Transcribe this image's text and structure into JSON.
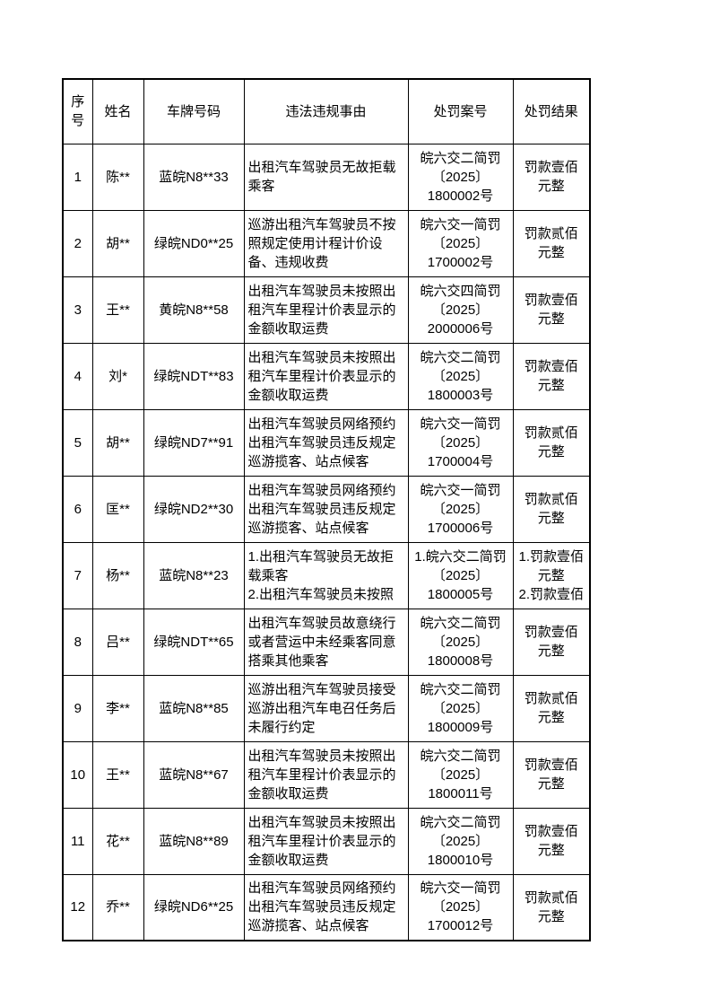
{
  "page": {
    "colors": {
      "background": "#ffffff",
      "table_border": "#000000",
      "text": "#000000"
    }
  },
  "table": {
    "columns": [
      {
        "key": "index",
        "label": "序号"
      },
      {
        "key": "name",
        "label": "姓名"
      },
      {
        "key": "plate",
        "label": "车牌号码"
      },
      {
        "key": "violation",
        "label": "违法违规事由"
      },
      {
        "key": "case_no",
        "label": "处罚案号"
      },
      {
        "key": "result",
        "label": "处罚结果"
      }
    ],
    "rows": [
      {
        "index": "1",
        "name": "陈**",
        "plate": "蓝皖N8**33",
        "violation": "出租汽车驾驶员无故拒载乘客",
        "case_no": "皖六交二简罚\n〔2025〕\n1800002号",
        "result": "罚款壹佰\n元整"
      },
      {
        "index": "2",
        "name": "胡**",
        "plate": "绿皖ND0**25",
        "violation": "巡游出租汽车驾驶员不按照规定使用计程计价设备、违规收费",
        "case_no": "皖六交一简罚\n〔2025〕\n1700002号",
        "result": "罚款贰佰\n元整"
      },
      {
        "index": "3",
        "name": "王**",
        "plate": "黄皖N8**58",
        "violation": "出租汽车驾驶员未按照出租汽车里程计价表显示的金额收取运费",
        "case_no": "皖六交四简罚\n〔2025〕\n2000006号",
        "result": "罚款壹佰\n元整"
      },
      {
        "index": "4",
        "name": "刘*",
        "plate": "绿皖NDT**83",
        "violation": "出租汽车驾驶员未按照出租汽车里程计价表显示的金额收取运费",
        "case_no": "皖六交二简罚\n〔2025〕\n1800003号",
        "result": "罚款壹佰\n元整"
      },
      {
        "index": "5",
        "name": "胡**",
        "plate": "绿皖ND7**91",
        "violation": "出租汽车驾驶员网络预约出租汽车驾驶员违反规定巡游揽客、站点候客",
        "case_no": "皖六交一简罚\n〔2025〕\n1700004号",
        "result": "罚款贰佰\n元整"
      },
      {
        "index": "6",
        "name": "匡**",
        "plate": "绿皖ND2**30",
        "violation": "出租汽车驾驶员网络预约出租汽车驾驶员违反规定巡游揽客、站点候客",
        "case_no": "皖六交一简罚\n〔2025〕\n1700006号",
        "result": "罚款贰佰\n元整"
      },
      {
        "index": "7",
        "name": "杨**",
        "plate": "蓝皖N8**23",
        "violation": "1.出租汽车驾驶员无故拒载乘客\n2.出租汽车驾驶员未按照",
        "case_no": "1.皖六交二简罚\n〔2025〕\n1800005号",
        "result": "1.罚款壹佰\n元整\n2.罚款壹佰"
      },
      {
        "index": "8",
        "name": "吕**",
        "plate": "绿皖NDT**65",
        "violation": "出租汽车驾驶员故意绕行或者营运中未经乘客同意搭乘其他乘客",
        "case_no": "皖六交二简罚\n〔2025〕\n1800008号",
        "result": "罚款壹佰\n元整"
      },
      {
        "index": "9",
        "name": "李**",
        "plate": "蓝皖N8**85",
        "violation": "巡游出租汽车驾驶员接受巡游出租汽车电召任务后未履行约定",
        "case_no": "皖六交二简罚\n〔2025〕\n1800009号",
        "result": "罚款贰佰\n元整"
      },
      {
        "index": "10",
        "name": "王**",
        "plate": "蓝皖N8**67",
        "violation": "出租汽车驾驶员未按照出租汽车里程计价表显示的金额收取运费",
        "case_no": "皖六交二简罚\n〔2025〕\n1800011号",
        "result": "罚款壹佰\n元整"
      },
      {
        "index": "11",
        "name": "花**",
        "plate": "蓝皖N8**89",
        "violation": "出租汽车驾驶员未按照出租汽车里程计价表显示的金额收取运费",
        "case_no": "皖六交二简罚\n〔2025〕\n1800010号",
        "result": "罚款壹佰\n元整"
      },
      {
        "index": "12",
        "name": "乔**",
        "plate": "绿皖ND6**25",
        "violation": "出租汽车驾驶员网络预约出租汽车驾驶员违反规定巡游揽客、站点候客",
        "case_no": "皖六交一简罚\n〔2025〕\n1700012号",
        "result": "罚款贰佰\n元整"
      }
    ]
  }
}
